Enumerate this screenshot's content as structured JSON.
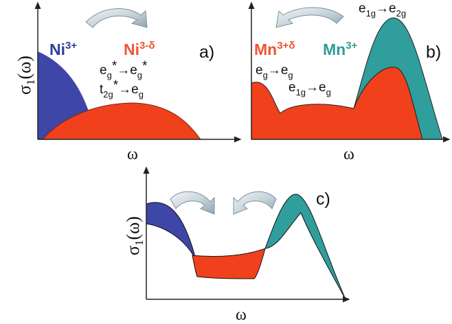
{
  "panels": {
    "a": {
      "tag": "a)",
      "ylabel": {
        "main": "σ",
        "sub": "1",
        "tail": "(ω)"
      },
      "xlabel": "ω",
      "ion_left": {
        "main": "Ni",
        "sup": "3+"
      },
      "ion_right": {
        "main": "Ni",
        "sup": "3-δ"
      },
      "transition_1": {
        "a": "e",
        "a_sub": "g",
        "a_sup": "*",
        "arrow": "→",
        "b": "e",
        "b_sub": "g",
        "b_sup": "*"
      },
      "transition_2": {
        "a": "t",
        "a_sub": "2g",
        "a_sup": "*",
        "arrow": "→",
        "b": "e",
        "b_sub": "g"
      }
    },
    "b": {
      "tag": "b)",
      "xlabel": "ω",
      "ion_left": {
        "main": "Mn",
        "sup": "3+δ"
      },
      "ion_right": {
        "main": "Mn",
        "sup": "3+"
      },
      "transition_top": {
        "a": "e",
        "a_sub": "1g",
        "arrow": "→",
        "b": "e",
        "b_sub": "2g"
      },
      "transition_1": {
        "a": "e",
        "a_sub": "g",
        "arrow": "→",
        "b": "e",
        "b_sub": "g"
      },
      "transition_2": {
        "a": "e",
        "a_sub": "1g",
        "arrow": "→",
        "b": "e",
        "b_sub": "g"
      }
    },
    "c": {
      "tag": "c)",
      "ylabel": {
        "main": "σ",
        "sub": "1",
        "tail": "(ω)"
      },
      "xlabel": "ω"
    }
  },
  "colors": {
    "blue": "#3e46a8",
    "red": "#f0401c",
    "teal": "#2f9e9c",
    "ni3_text": "#2e3d9c",
    "ni3d_text": "#ee5530",
    "mn3d_text": "#ee5530",
    "mn3_text": "#2e9c9a",
    "arrow_light": "#e8eef2",
    "arrow_dark": "#8fa4b1"
  },
  "icons": [
    "curved-arrow-icon"
  ]
}
